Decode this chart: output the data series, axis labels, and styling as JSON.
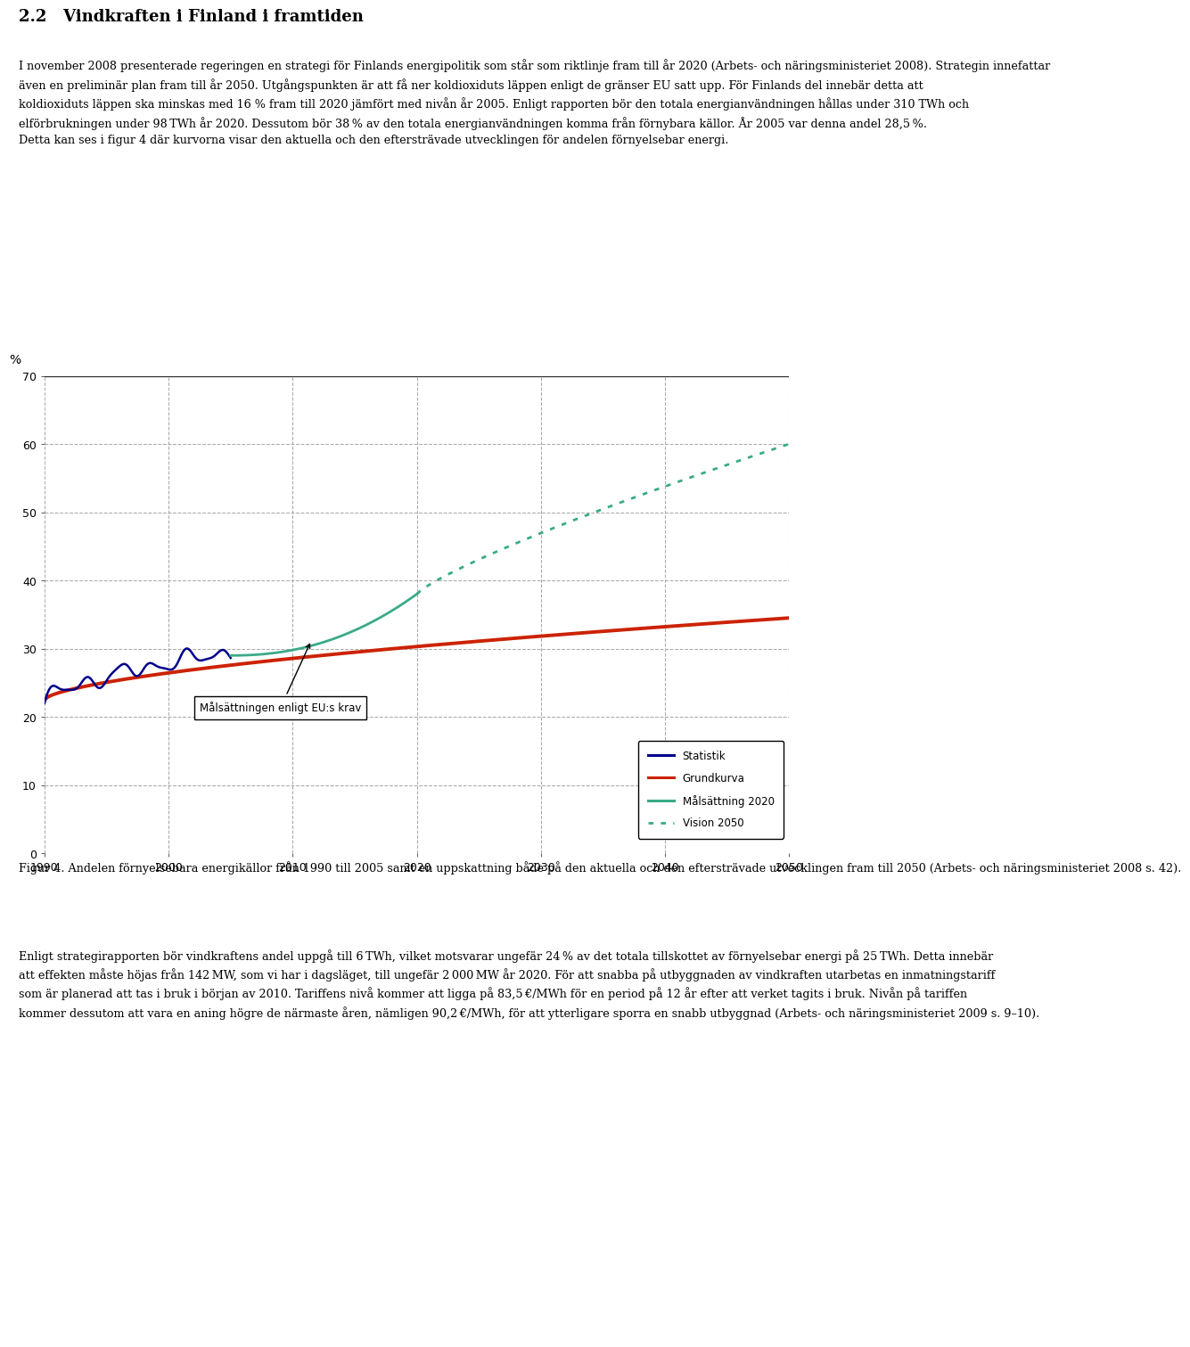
{
  "ylabel": "%",
  "ylim": [
    0,
    70
  ],
  "yticks": [
    0,
    10,
    20,
    30,
    40,
    50,
    60,
    70
  ],
  "xlim": [
    1990,
    2050
  ],
  "xticks": [
    1990,
    2000,
    2010,
    2020,
    2030,
    2040,
    2050
  ],
  "bg_color": "#ffffff",
  "statistik_color": "#00008B",
  "grundkurva_color": "#cc2200",
  "malsattning_color": "#3aaa88",
  "vision_color": "#3aaa88",
  "grid_color": "#aaaaaa",
  "annotation_text": "Målsättningen enligt EU:s krav",
  "legend_entries": [
    "Statistik",
    "Grundkurva",
    "Målsättning 2020",
    "Vision 2050"
  ],
  "heading": "2.2   Vindkraften i Finland i framtiden",
  "body_text_1": "I november 2008 presenterade regeringen en strategi för Finlands energipolitik som står som riktlinje fram till år 2020 (Arbets- och näringsministeriet 2008). Strategin innefattar\näven en preliminär plan fram till år 2050. Utgångspunkten är att få ner koldioxiduts läppen enligt de gränser EU satt upp. För Finlands del innebär detta att\nkoldioxiduts läppen ska minskas med 16 % fram till 2020 jämfört med nivån år 2005. Enligt rapporten bör den totala energianvändningen hållas under 310 TWh och\nelförbrukningen under 98 TWh år 2020. Dessutom bör 38 % av den totala energianvändningen komma från förnybara källor. År 2005 var denna andel 28,5 %.\nDetta kan ses i figur 4 där kurvorna visar den aktuella och den eftersträvade utvecklingen för andelen förnyelsebar energi.",
  "caption": "Figur 4. Andelen förnyelsebara energikällor från 1990 till 2005 samt en uppskattning både på den aktuella och den eftersträvade utvecklingen fram till 2050 (Arbets- och näringsministeriet 2008 s. 42).",
  "body_text_2": "Enligt strategirapporten bör vindkraftens andel uppgå till 6 TWh, vilket motsvarar ungefär 24 % av det totala tillskottet av förnyelsebar energi på 25 TWh. Detta innebär\natt effekten måste höjas från 142 MW, som vi har i dagsläget, till ungefär 2 000 MW år 2020. För att snabba på utbyggnaden av vindkraften utarbetas en inmatningstariff\nsom är planerad att tas i bruk i början av 2010. Tariffens nivå kommer att ligga på 83,5 €/MWh för en period på 12 år efter att verket tagits i bruk. Nivån på tariffen\nkommer dessutom att vara en aning högre de närmaste åren, nämligen 90,2 €/MWh, för att ytterligare sporra en snabb utbyggnad (Arbets- och näringsministeriet 2009 s. 9–10).",
  "dpi": 100
}
